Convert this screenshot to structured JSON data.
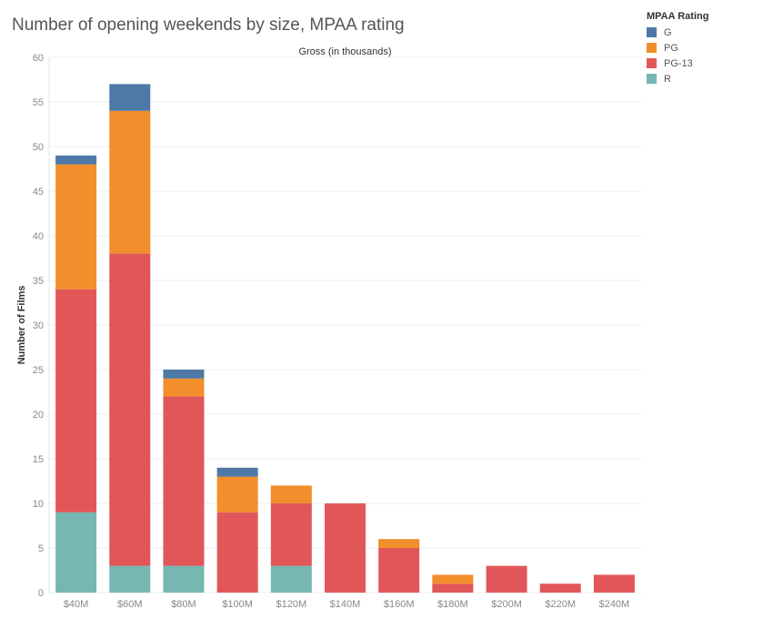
{
  "chart_data": {
    "type": "bar",
    "stacked": true,
    "title": "Number of opening weekends by size, MPAA rating",
    "column_header": "Gross (in thousands)",
    "ylabel": "Number of Films",
    "ylim": [
      0,
      60
    ],
    "yticks": [
      0,
      5,
      10,
      15,
      20,
      25,
      30,
      35,
      40,
      45,
      50,
      55,
      60
    ],
    "grid": true,
    "legend_title": "MPAA Rating",
    "legend_position": "top-right",
    "categories": [
      "$40M",
      "$60M",
      "$80M",
      "$100M",
      "$120M",
      "$140M",
      "$160M",
      "$180M",
      "$200M",
      "$220M",
      "$240M"
    ],
    "series": [
      {
        "name": "R",
        "color": "#76b7b2",
        "values": [
          9,
          3,
          3,
          0,
          3,
          0,
          0,
          0,
          0,
          0,
          0
        ]
      },
      {
        "name": "PG-13",
        "color": "#e15759",
        "values": [
          25,
          35,
          19,
          9,
          7,
          10,
          5,
          1,
          3,
          1,
          2
        ]
      },
      {
        "name": "PG",
        "color": "#f28e2b",
        "values": [
          14,
          16,
          2,
          4,
          2,
          0,
          1,
          1,
          0,
          0,
          0
        ]
      },
      {
        "name": "G",
        "color": "#4e79a7",
        "values": [
          1,
          3,
          1,
          1,
          0,
          0,
          0,
          0,
          0,
          0,
          0
        ]
      }
    ]
  },
  "legend_order": [
    "G",
    "PG",
    "PG-13",
    "R"
  ]
}
